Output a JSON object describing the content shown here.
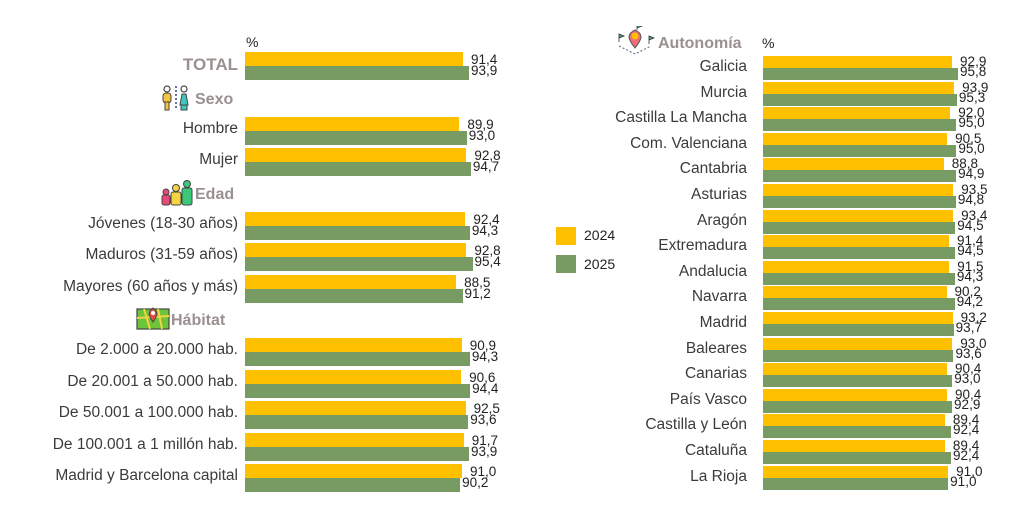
{
  "colors": {
    "y2024": "#FFC000",
    "y2025": "#789A63",
    "section": "#9b9090"
  },
  "chart_data": [
    {
      "type": "bar",
      "orientation": "horizontal",
      "unit_label": "%",
      "xlim": [
        0,
        100
      ],
      "legend": {
        "placement": "center",
        "entries": [
          "2024",
          "2025"
        ]
      },
      "sections": [
        {
          "title": "TOTAL",
          "icon": "",
          "rows": [
            {
              "label": "TOTAL",
              "v2024": 91.4,
              "v2025": 93.9,
              "t2024": "91,4",
              "t2025": "93,9"
            }
          ]
        },
        {
          "title": "Sexo",
          "icon": "gender-icon",
          "rows": [
            {
              "label": "Hombre",
              "v2024": 89.9,
              "v2025": 93.0,
              "t2024": "89,9",
              "t2025": "93,0"
            },
            {
              "label": "Mujer",
              "v2024": 92.8,
              "v2025": 94.7,
              "t2024": "92,8",
              "t2025": "94,7"
            }
          ]
        },
        {
          "title": "Edad",
          "icon": "age-group-icon",
          "rows": [
            {
              "label": "Jóvenes (18-30 años)",
              "v2024": 92.4,
              "v2025": 94.3,
              "t2024": "92,4",
              "t2025": "94,3"
            },
            {
              "label": "Maduros (31-59 años)",
              "v2024": 92.8,
              "v2025": 95.4,
              "t2024": "92,8",
              "t2025": "95,4"
            },
            {
              "label": "Mayores (60 años y más)",
              "v2024": 88.5,
              "v2025": 91.2,
              "t2024": "88,5",
              "t2025": "91,2"
            }
          ]
        },
        {
          "title": "Hábitat",
          "icon": "map-icon",
          "rows": [
            {
              "label": "De 2.000 a 20.000 hab.",
              "v2024": 90.9,
              "v2025": 94.3,
              "t2024": "90,9",
              "t2025": "94,3"
            },
            {
              "label": "De 20.001 a 50.000 hab.",
              "v2024": 90.6,
              "v2025": 94.4,
              "t2024": "90,6",
              "t2025": "94,4"
            },
            {
              "label": "De 50.001 a 100.000 hab.",
              "v2024": 92.5,
              "v2025": 93.6,
              "t2024": "92,5",
              "t2025": "93,6"
            },
            {
              "label": "De 100.001 a 1 millón hab.",
              "v2024": 91.7,
              "v2025": 93.9,
              "t2024": "91,7",
              "t2025": "93,9"
            },
            {
              "label": "Madrid y Barcelona capital",
              "v2024": 91.0,
              "v2025": 90.2,
              "t2024": "91,0",
              "t2025": "90,2"
            }
          ]
        }
      ]
    },
    {
      "type": "bar",
      "orientation": "horizontal",
      "title": "Autonomía",
      "icon": "location-pin-icon",
      "unit_label": "%",
      "xlim": [
        0,
        100
      ],
      "rows": [
        {
          "label": "Galicia",
          "v2024": 92.9,
          "v2025": 95.8,
          "t2024": "92,9",
          "t2025": "95,8"
        },
        {
          "label": "Murcia",
          "v2024": 93.9,
          "v2025": 95.3,
          "t2024": "93,9",
          "t2025": "95,3"
        },
        {
          "label": "Castilla La Mancha",
          "v2024": 92.0,
          "v2025": 95.0,
          "t2024": "92,0",
          "t2025": "95,0"
        },
        {
          "label": "Com. Valenciana",
          "v2024": 90.5,
          "v2025": 95.0,
          "t2024": "90,5",
          "t2025": "95,0"
        },
        {
          "label": "Cantabria",
          "v2024": 88.8,
          "v2025": 94.9,
          "t2024": "88,8",
          "t2025": "94,9"
        },
        {
          "label": "Asturias",
          "v2024": 93.5,
          "v2025": 94.8,
          "t2024": "93,5",
          "t2025": "94,8"
        },
        {
          "label": "Aragón",
          "v2024": 93.4,
          "v2025": 94.5,
          "t2024": "93,4",
          "t2025": "94,5"
        },
        {
          "label": "Extremadura",
          "v2024": 91.4,
          "v2025": 94.5,
          "t2024": "91,4",
          "t2025": "94,5"
        },
        {
          "label": "Andalucia",
          "v2024": 91.5,
          "v2025": 94.3,
          "t2024": "91,5",
          "t2025": "94,3"
        },
        {
          "label": "Navarra",
          "v2024": 90.2,
          "v2025": 94.2,
          "t2024": "90,2",
          "t2025": "94,2"
        },
        {
          "label": "Madrid",
          "v2024": 93.2,
          "v2025": 93.7,
          "t2024": "93,2",
          "t2025": "93,7"
        },
        {
          "label": "Baleares",
          "v2024": 93.0,
          "v2025": 93.6,
          "t2024": "93,0",
          "t2025": "93,6"
        },
        {
          "label": "Canarias",
          "v2024": 90.4,
          "v2025": 93.0,
          "t2024": "90,4",
          "t2025": "93,0"
        },
        {
          "label": "País Vasco",
          "v2024": 90.4,
          "v2025": 92.9,
          "t2024": "90,4",
          "t2025": "92,9"
        },
        {
          "label": "Castilla y León",
          "v2024": 89.4,
          "v2025": 92.4,
          "t2024": "89,4",
          "t2025": "92,4"
        },
        {
          "label": "Cataluña",
          "v2024": 89.4,
          "v2025": 92.4,
          "t2024": "89,4",
          "t2025": "92,4"
        },
        {
          "label": "La Rioja",
          "v2024": 91.0,
          "v2025": 91.0,
          "t2024": "91,0",
          "t2025": "91,0"
        }
      ]
    }
  ]
}
